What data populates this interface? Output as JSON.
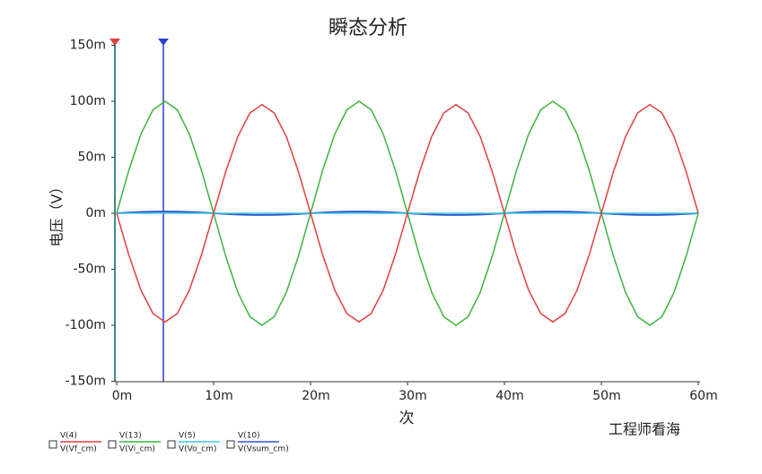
{
  "chart_data": {
    "type": "line",
    "title": "瞬态分析",
    "y_label": "电压（V）",
    "x_label": "次",
    "watermark": "工程师看海",
    "x": [
      0,
      0.00125,
      0.0025,
      0.00375,
      0.005,
      0.00625,
      0.0075,
      0.00875,
      0.01,
      0.01125,
      0.0125,
      0.01375,
      0.015,
      0.01625,
      0.0175,
      0.01875,
      0.02,
      0.02125,
      0.0225,
      0.02375,
      0.025,
      0.02625,
      0.0275,
      0.02875,
      0.03,
      0.03125,
      0.0325,
      0.03375,
      0.035,
      0.03625,
      0.0375,
      0.03875,
      0.04,
      0.04125,
      0.0425,
      0.04375,
      0.045,
      0.04625,
      0.0475,
      0.04875,
      0.05,
      0.05125,
      0.0525,
      0.05375,
      0.055,
      0.05625,
      0.0575,
      0.05875,
      0.06
    ],
    "series": [
      {
        "probe": "V(4)",
        "name": "V(Vf_cm)",
        "color": "#e0403f",
        "values": [
          0,
          -0.0371,
          -0.0686,
          -0.0896,
          -0.097,
          -0.0896,
          -0.0686,
          -0.0371,
          0,
          0.0371,
          0.0686,
          0.0896,
          0.097,
          0.0896,
          0.0686,
          0.0371,
          0,
          -0.0371,
          -0.0686,
          -0.0896,
          -0.097,
          -0.0896,
          -0.0686,
          -0.0371,
          0,
          0.0371,
          0.0686,
          0.0896,
          0.097,
          0.0896,
          0.0686,
          0.0371,
          0,
          -0.0371,
          -0.0686,
          -0.0896,
          -0.097,
          -0.0896,
          -0.0686,
          -0.0371,
          0,
          0.0371,
          0.0686,
          0.0896,
          0.097,
          0.0896,
          0.0686,
          0.0371,
          0
        ]
      },
      {
        "probe": "V(13)",
        "name": "V(Vi_cm)",
        "color": "#3cb43c",
        "values": [
          0,
          0.0383,
          0.0707,
          0.0924,
          0.1,
          0.0924,
          0.0707,
          0.0383,
          0,
          -0.0383,
          -0.0707,
          -0.0924,
          -0.1,
          -0.0924,
          -0.0707,
          -0.0383,
          0,
          0.0383,
          0.0707,
          0.0924,
          0.1,
          0.0924,
          0.0707,
          0.0383,
          0,
          -0.0383,
          -0.0707,
          -0.0924,
          -0.1,
          -0.0924,
          -0.0707,
          -0.0383,
          0,
          0.0383,
          0.0707,
          0.0924,
          0.1,
          0.0924,
          0.0707,
          0.0383,
          0,
          -0.0383,
          -0.0707,
          -0.0924,
          -0.1,
          -0.0924,
          -0.0707,
          -0.0383,
          0
        ]
      },
      {
        "probe": "V(5)",
        "name": "V(Vo_cm)",
        "color": "#40c8e0",
        "values": [
          0,
          0,
          0,
          0,
          0,
          0,
          0,
          0,
          0,
          0,
          0,
          0,
          0,
          0,
          0,
          0,
          0,
          0,
          0,
          0,
          0,
          0,
          0,
          0,
          0,
          0,
          0,
          0,
          0,
          0,
          0,
          0,
          0,
          0,
          0,
          0,
          0,
          0,
          0,
          0,
          0,
          0,
          0,
          0,
          0,
          0,
          0,
          0,
          0
        ]
      },
      {
        "probe": "V(10)",
        "name": "V(Vsum_cm)",
        "color": "#2f55d0",
        "values": [
          0,
          0.0006,
          0.0011,
          0.0014,
          0.0015,
          0.0014,
          0.0011,
          0.0006,
          0,
          -0.0006,
          -0.0011,
          -0.0014,
          -0.0015,
          -0.0014,
          -0.0011,
          -0.0006,
          0,
          0.0006,
          0.0011,
          0.0014,
          0.0015,
          0.0014,
          0.0011,
          0.0006,
          0,
          -0.0006,
          -0.0011,
          -0.0014,
          -0.0015,
          -0.0014,
          -0.0011,
          -0.0006,
          0,
          0.0006,
          0.0011,
          0.0014,
          0.0015,
          0.0014,
          0.0011,
          0.0006,
          0,
          -0.0006,
          -0.0011,
          -0.0014,
          -0.0015,
          -0.0014,
          -0.0011,
          -0.0006,
          0
        ]
      }
    ],
    "xlim": [
      0,
      0.06
    ],
    "xticks": [
      {
        "value": 0,
        "label": "0m"
      },
      {
        "value": 0.01,
        "label": "10m"
      },
      {
        "value": 0.02,
        "label": "20m"
      },
      {
        "value": 0.03,
        "label": "30m"
      },
      {
        "value": 0.04,
        "label": "40m"
      },
      {
        "value": 0.05,
        "label": "50m"
      },
      {
        "value": 0.06,
        "label": "60m"
      }
    ],
    "ylim": [
      -0.15,
      0.15
    ],
    "yticks": [
      {
        "value": -0.15,
        "label": "-150m"
      },
      {
        "value": -0.1,
        "label": "-100m"
      },
      {
        "value": -0.05,
        "label": "-50m"
      },
      {
        "value": 0,
        "label": "0m"
      },
      {
        "value": 0.05,
        "label": "50m"
      },
      {
        "value": 0.1,
        "label": "100m"
      },
      {
        "value": 0.15,
        "label": "150m"
      }
    ]
  }
}
